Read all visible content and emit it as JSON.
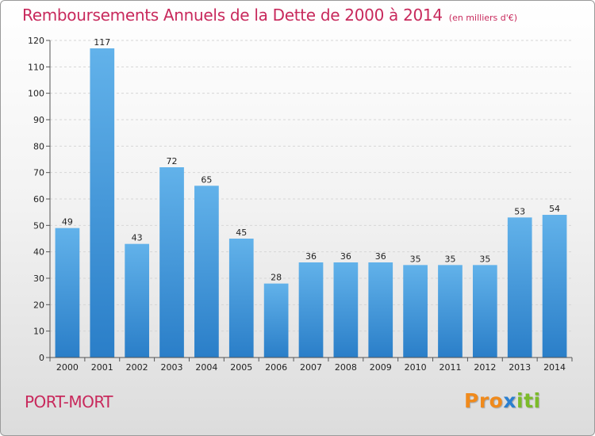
{
  "header": {
    "title": "Remboursements Annuels de la Dette de 2000 à 2014",
    "subtitle": "(en milliers d'€)"
  },
  "footer": {
    "place": "PORT-MORT",
    "logo": {
      "letters": [
        "P",
        "r",
        "o",
        "x",
        "i",
        "t",
        "i"
      ],
      "colors": [
        "#f08a1c",
        "#f08a1c",
        "#f08a1c",
        "#2a7fd0",
        "#7cbb2a",
        "#7cbb2a",
        "#7cbb2a"
      ]
    }
  },
  "colors": {
    "bar_top": "#62b2ea",
    "bar_bottom": "#2a7ec8",
    "title": "#c8295c"
  },
  "chart_data": {
    "type": "bar",
    "title": "Remboursements Annuels de la Dette de 2000 à 2014",
    "categories": [
      "2000",
      "2001",
      "2002",
      "2003",
      "2004",
      "2005",
      "2006",
      "2007",
      "2008",
      "2009",
      "2010",
      "2011",
      "2012",
      "2013",
      "2014"
    ],
    "values": [
      49,
      117,
      43,
      72,
      65,
      45,
      28,
      36,
      36,
      36,
      35,
      35,
      35,
      53,
      54
    ],
    "ylim": [
      0,
      120
    ],
    "yticks": [
      0,
      10,
      20,
      30,
      40,
      50,
      60,
      70,
      80,
      90,
      100,
      110,
      120
    ],
    "grid": true,
    "xlabel": "",
    "ylabel": ""
  }
}
